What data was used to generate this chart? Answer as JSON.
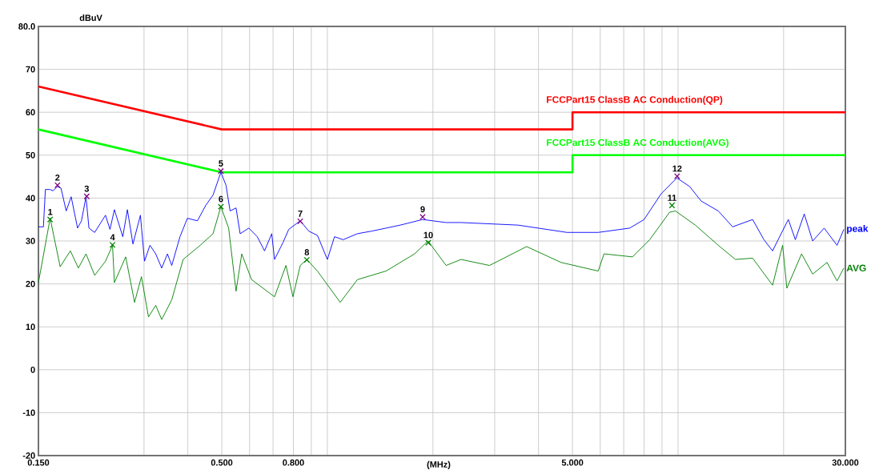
{
  "chart_data": {
    "type": "line",
    "xlabel": "(MHz)",
    "ylabel": "dBuV",
    "log": "x",
    "grid": true,
    "xlim": [
      0.15,
      30
    ],
    "ylim": [
      -20,
      80
    ],
    "xticks": [
      {
        "value": 0.15,
        "label": "0.150"
      },
      {
        "value": 0.3,
        "label": null
      },
      {
        "value": 0.4,
        "label": null
      },
      {
        "value": 0.5,
        "label": "0.500"
      },
      {
        "value": 0.6,
        "label": null
      },
      {
        "value": 0.7,
        "label": null
      },
      {
        "value": 0.8,
        "label": "0.800"
      },
      {
        "value": 0.9,
        "label": null
      },
      {
        "value": 1,
        "label": null
      },
      {
        "value": 2,
        "label": null
      },
      {
        "value": 3,
        "label": null
      },
      {
        "value": 4,
        "label": null
      },
      {
        "value": 5,
        "label": "5.000"
      },
      {
        "value": 6,
        "label": null
      },
      {
        "value": 7,
        "label": null
      },
      {
        "value": 8,
        "label": null
      },
      {
        "value": 9,
        "label": null
      },
      {
        "value": 10,
        "label": null
      },
      {
        "value": 20,
        "label": null
      },
      {
        "value": 30,
        "label": "30.000"
      }
    ],
    "yticks": [
      -20,
      -10,
      0,
      10,
      20,
      30,
      40,
      50,
      60,
      70,
      {
        "value": 80,
        "label": "80.0"
      }
    ],
    "series": [
      {
        "name": "FCCPart15 ClassB AC Conduction(QP)",
        "color": "#ff0000",
        "x": [
          0.15,
          0.5,
          5,
          5,
          30
        ],
        "values": [
          66,
          56,
          56,
          60,
          60
        ]
      },
      {
        "name": "FCCPart15 ClassB AC Conduction(AVG)",
        "color": "#00ff00",
        "x": [
          0.15,
          0.5,
          5,
          5,
          30
        ],
        "values": [
          56,
          46,
          46,
          50,
          50
        ]
      },
      {
        "name": "peak",
        "color": "#0000ff",
        "x": [
          0.15,
          0.155,
          0.157,
          0.162,
          0.165,
          0.17,
          0.174,
          0.18,
          0.186,
          0.194,
          0.199,
          0.205,
          0.209,
          0.217,
          0.233,
          0.24,
          0.247,
          0.261,
          0.269,
          0.279,
          0.293,
          0.301,
          0.312,
          0.324,
          0.337,
          0.35,
          0.36,
          0.38,
          0.399,
          0.426,
          0.45,
          0.472,
          0.497,
          0.514,
          0.528,
          0.549,
          0.564,
          0.597,
          0.631,
          0.662,
          0.694,
          0.707,
          0.748,
          0.776,
          0.837,
          0.885,
          0.937,
          1.0,
          1.048,
          1.109,
          1.218,
          1.338,
          1.47,
          1.614,
          1.869,
          2.181,
          2.405,
          3.5,
          4.82,
          5.92,
          7.28,
          8.0,
          8.95,
          9.92,
          10.79,
          11.64,
          13.02,
          14.31,
          16.32,
          17.58,
          18.6,
          19.68,
          20.63,
          21.6,
          22.9,
          24.2,
          26.1,
          28.4,
          29.7
        ],
        "values": [
          33.3,
          33.3,
          42.0,
          42.0,
          41.7,
          42.7,
          42.3,
          37.0,
          40.3,
          33.0,
          34.7,
          40.3,
          33.0,
          32.0,
          36.0,
          32.7,
          37.3,
          31.0,
          37.3,
          29.3,
          36.0,
          25.3,
          29.0,
          27.0,
          23.7,
          27.0,
          24.3,
          31.0,
          35.3,
          34.7,
          38.3,
          40.7,
          46.0,
          43.0,
          37.0,
          37.7,
          31.7,
          33.0,
          31.0,
          27.7,
          31.7,
          25.7,
          29.7,
          32.7,
          34.7,
          32.3,
          31.3,
          25.7,
          31.0,
          30.3,
          31.7,
          32.3,
          33.0,
          33.7,
          35.0,
          34.3,
          34.3,
          33.7,
          32.0,
          32.0,
          33.0,
          35.0,
          41.0,
          44.7,
          42.7,
          39.3,
          37.0,
          33.3,
          35.0,
          30.3,
          27.7,
          31.7,
          35.0,
          30.3,
          36.3,
          30.0,
          33.0,
          29.0,
          32.7
        ]
      },
      {
        "name": "AVG",
        "color": "#008000",
        "x": [
          0.15,
          0.162,
          0.173,
          0.185,
          0.195,
          0.205,
          0.217,
          0.233,
          0.244,
          0.247,
          0.266,
          0.282,
          0.295,
          0.309,
          0.324,
          0.337,
          0.36,
          0.388,
          0.434,
          0.472,
          0.497,
          0.523,
          0.549,
          0.57,
          0.608,
          0.707,
          0.762,
          0.798,
          0.837,
          0.874,
          0.937,
          1.088,
          1.218,
          1.47,
          1.773,
          1.937,
          2.181,
          2.405,
          2.9,
          3.7,
          4.64,
          5.92,
          6.15,
          7.41,
          8.3,
          9.46,
          9.83,
          11.2,
          13.02,
          14.58,
          16.32,
          18.6,
          19.87,
          20.43,
          22.5,
          24.2,
          26.6,
          28.4,
          29.7
        ],
        "values": [
          20.3,
          35.3,
          24.0,
          27.7,
          23.7,
          27.0,
          22.0,
          25.3,
          29.0,
          20.3,
          26.3,
          15.7,
          21.7,
          12.3,
          15.0,
          11.7,
          16.3,
          25.7,
          29.0,
          31.7,
          38.0,
          33.0,
          18.3,
          27.0,
          21.0,
          17.0,
          24.3,
          17.0,
          24.3,
          25.7,
          23.0,
          15.7,
          21.0,
          23.0,
          27.0,
          30.0,
          24.3,
          25.7,
          24.3,
          28.7,
          25.0,
          23.0,
          27.0,
          26.3,
          30.3,
          36.7,
          37.0,
          33.7,
          29.0,
          25.7,
          26.0,
          19.7,
          29.0,
          19.0,
          27.0,
          22.3,
          25.0,
          20.7,
          23.7
        ]
      },
      {
        "type": "scatter",
        "marker": "cross",
        "color": "#800080",
        "x": [
          0.17,
          0.206,
          0.497,
          0.837,
          1.87,
          9.94
        ],
        "values": [
          43.0,
          40.4,
          46.3,
          34.6,
          35.6,
          45.1
        ]
      },
      {
        "type": "scatter",
        "marker": "cross",
        "color": "#008000",
        "x": [
          0.162,
          0.244,
          0.497,
          0.874,
          1.94,
          9.61
        ],
        "values": [
          35.0,
          29.1,
          38.0,
          25.6,
          29.6,
          38.3
        ]
      }
    ],
    "annotations": [
      {
        "text": "1",
        "x": 0.162,
        "y": 35.0
      },
      {
        "text": "2",
        "x": 0.17,
        "y": 43.0
      },
      {
        "text": "3",
        "x": 0.206,
        "y": 40.4
      },
      {
        "text": "4",
        "x": 0.244,
        "y": 29.1
      },
      {
        "text": "5",
        "x": 0.497,
        "y": 46.3
      },
      {
        "text": "6",
        "x": 0.497,
        "y": 38.0
      },
      {
        "text": "7",
        "x": 0.837,
        "y": 34.6
      },
      {
        "text": "8",
        "x": 0.874,
        "y": 25.6
      },
      {
        "text": "9",
        "x": 1.87,
        "y": 35.6
      },
      {
        "text": "10",
        "x": 1.94,
        "y": 29.6
      },
      {
        "text": "11",
        "x": 9.61,
        "y": 38.3
      },
      {
        "text": "12",
        "x": 9.94,
        "y": 45.1
      }
    ]
  }
}
